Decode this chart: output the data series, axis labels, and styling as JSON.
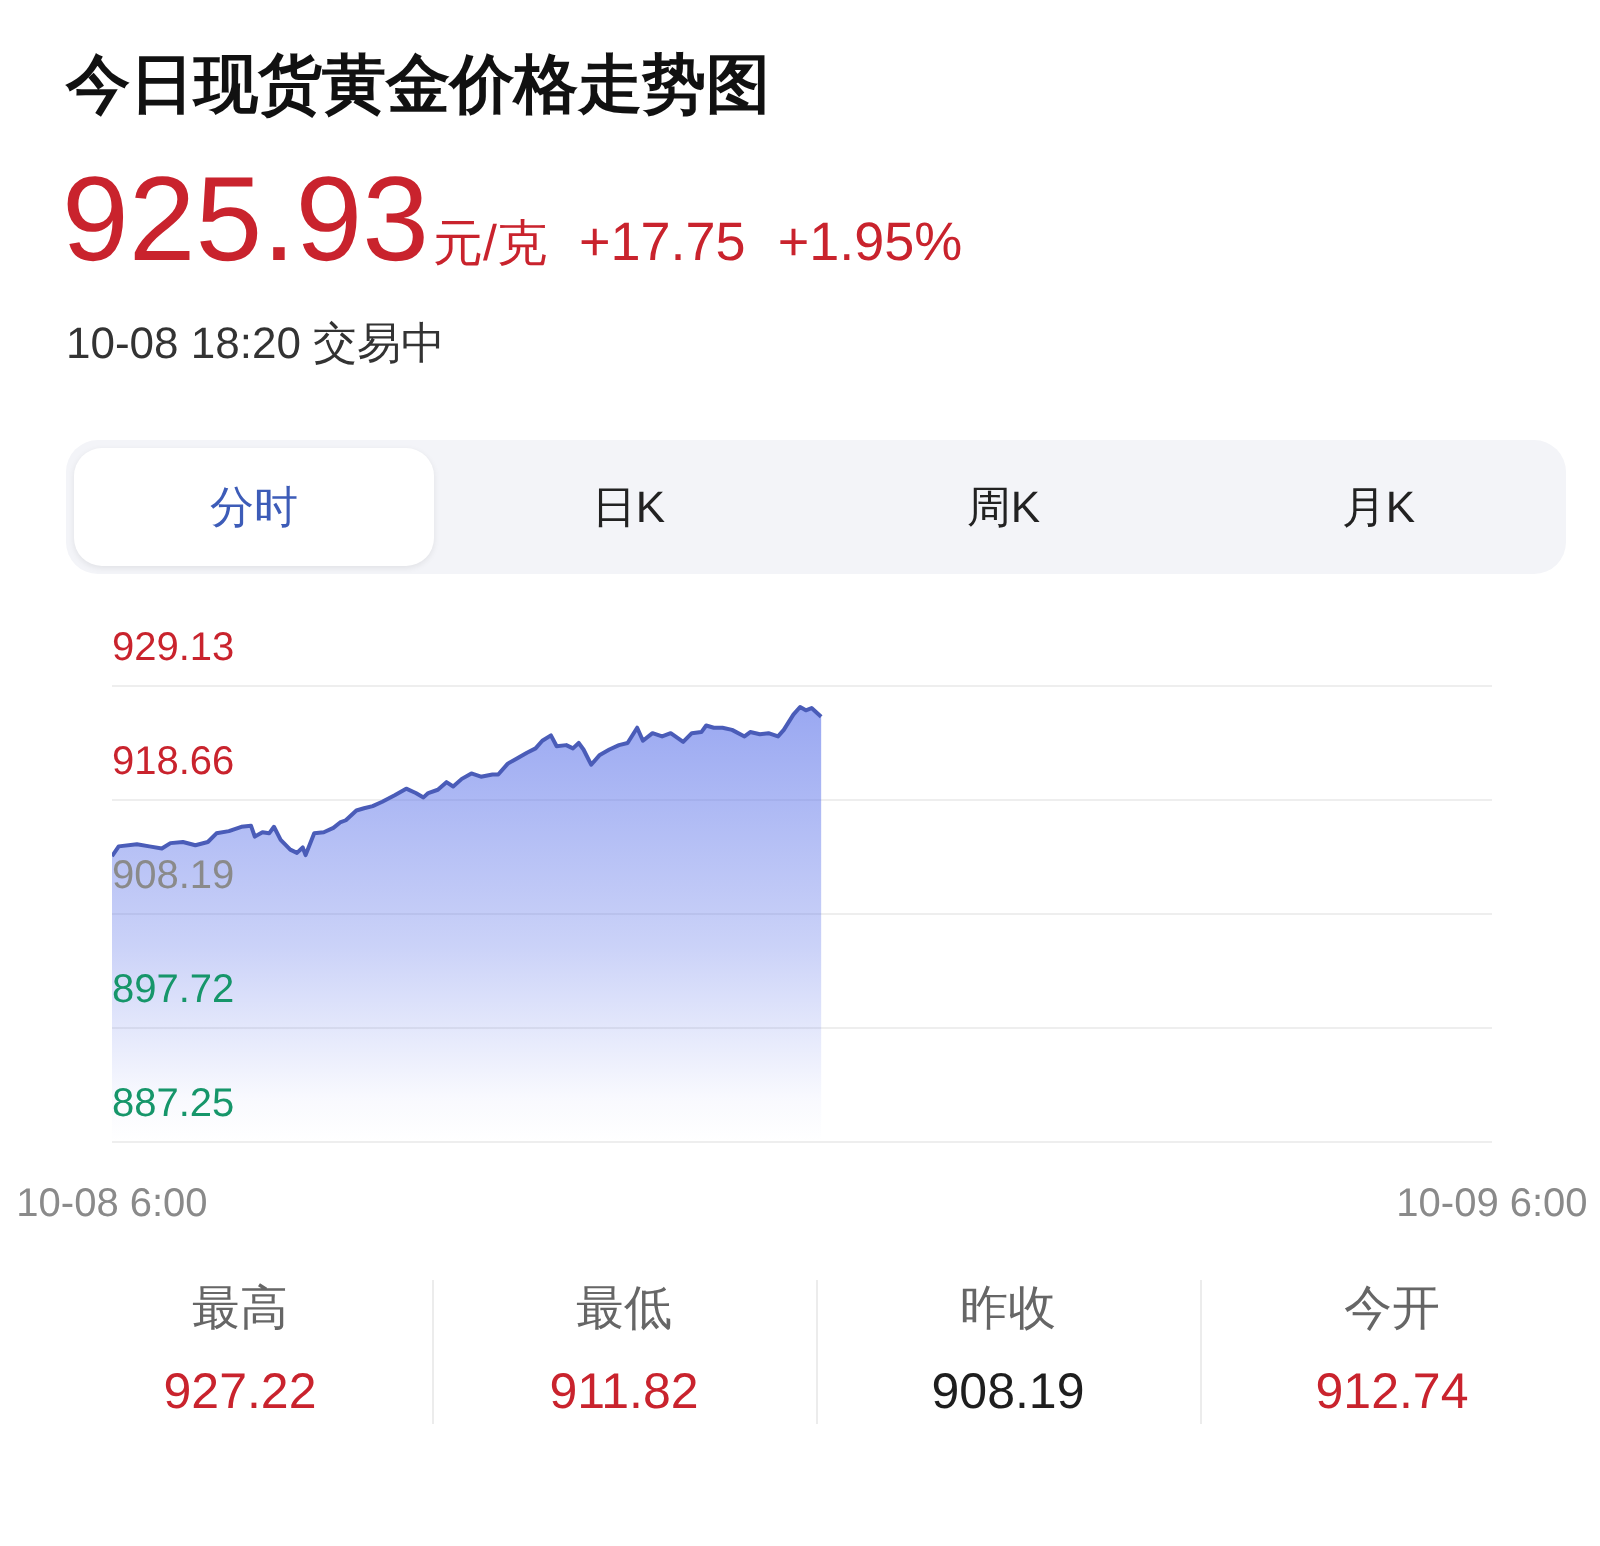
{
  "chart_data": {
    "type": "area",
    "title": "今日现货黄金价格走势图",
    "annotations": [
      "925.93",
      "元/克",
      "+17.75",
      "+1.95%",
      "10-08 18:20 交易中",
      "分时",
      "日K",
      "周K",
      "月K",
      "最高",
      "927.22",
      "最低",
      "911.82",
      "昨收",
      "908.19",
      "今开",
      "912.74"
    ],
    "x": [
      "--10-08T06:00",
      "--10-08T06:07",
      "--10-08T06:26",
      "--10-08T06:39",
      "--10-08T06:52",
      "--10-08T07:01",
      "--10-08T07:14",
      "--10-08T07:27",
      "--10-08T07:40",
      "--10-08T07:49",
      "--10-08T08:02",
      "--10-08T08:15",
      "--10-08T08:25",
      "--10-08T08:29",
      "--10-08T08:37",
      "--10-08T08:44",
      "--10-08T08:49",
      "--10-08T08:56",
      "--10-08T09:06",
      "--10-08T09:13",
      "--10-08T09:19",
      "--10-08T09:22",
      "--10-08T09:31",
      "--10-08T09:41",
      "--10-08T09:51",
      "--10-08T09:58",
      "--10-08T10:04",
      "--10-08T10:15",
      "--10-08T10:23",
      "--10-08T10:32",
      "--10-08T10:42",
      "--10-08T10:55",
      "--10-08T11:07",
      "--10-08T11:17",
      "--10-08T11:25",
      "--10-08T11:30",
      "--10-08T11:40",
      "--10-08T11:49",
      "--10-08T11:56",
      "--10-08T12:05",
      "--10-08T12:15",
      "--10-08T12:25",
      "--10-08T12:37",
      "--10-08T12:43",
      "--10-08T12:53",
      "--10-08T13:03",
      "--10-08T13:13",
      "--10-08T13:22",
      "--10-08T13:29",
      "--10-08T13:38",
      "--10-08T13:44",
      "--10-08T13:54",
      "--10-08T14:01",
      "--10-08T14:07",
      "--10-08T14:12",
      "--10-08T14:20",
      "--10-08T14:29",
      "--10-08T14:39",
      "--10-08T14:49",
      "--10-08T14:58",
      "--10-08T15:08",
      "--10-08T15:14",
      "--10-08T15:24",
      "--10-08T15:34",
      "--10-08T15:43",
      "--10-08T15:56",
      "--10-08T16:05",
      "--10-08T16:15",
      "--10-08T16:20",
      "--10-08T16:28",
      "--10-08T16:37",
      "--10-08T16:47",
      "--10-08T17:00",
      "--10-08T17:06",
      "--10-08T17:16",
      "--10-08T17:25",
      "--10-08T17:35",
      "--10-08T17:41",
      "--10-08T17:51",
      "--10-08T17:58",
      "--10-08T18:04",
      "--10-08T18:10",
      "--10-08T18:20"
    ],
    "values": [
      913.5,
      914.4,
      914.6,
      914.4,
      914.2,
      914.7,
      914.8,
      914.5,
      914.8,
      915.6,
      915.8,
      916.2,
      916.3,
      915.3,
      915.7,
      915.6,
      916.2,
      915.0,
      914.1,
      913.8,
      914.3,
      913.6,
      915.6,
      915.7,
      916.1,
      916.6,
      916.8,
      917.7,
      917.9,
      918.1,
      918.5,
      919.1,
      919.7,
      919.3,
      918.9,
      919.3,
      919.6,
      920.3,
      919.9,
      920.6,
      921.1,
      920.8,
      921.0,
      921.0,
      922.0,
      922.5,
      923.0,
      923.4,
      924.1,
      924.6,
      923.6,
      923.7,
      923.4,
      923.9,
      923.3,
      921.9,
      922.8,
      923.3,
      923.7,
      923.9,
      925.3,
      924.1,
      924.8,
      924.5,
      924.8,
      924.0,
      924.8,
      924.9,
      925.5,
      925.3,
      925.3,
      925.1,
      924.5,
      924.9,
      924.7,
      924.8,
      924.5,
      925.1,
      926.5,
      927.2,
      926.9,
      927.1,
      926.3
    ],
    "color": "#4a5cb8",
    "xlim": [
      "--10-08T06:00",
      "--10-09T06:00"
    ],
    "xticks": [
      {
        "value": "--10-08T06:00",
        "label": "10-08 6:00"
      },
      {
        "value": "--10-09T06:00",
        "label": "10-09 6:00"
      }
    ],
    "ylim": [
      887.25,
      929.13
    ],
    "yticks": [
      887.25,
      897.72,
      908.19,
      918.66,
      929.13
    ],
    "grid": "y"
  }
}
